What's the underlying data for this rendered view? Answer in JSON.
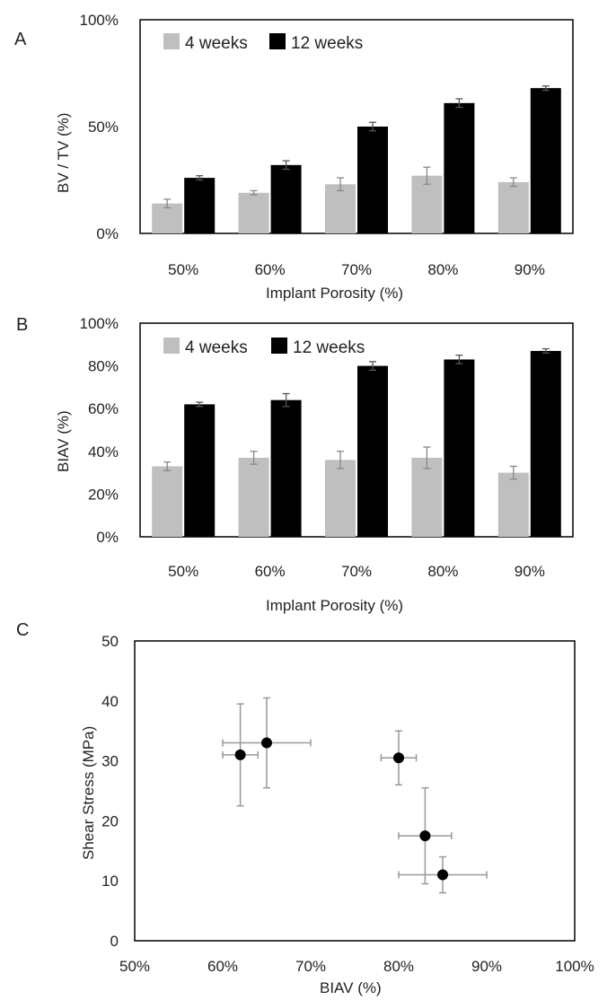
{
  "chart_data": [
    {
      "panel": "A",
      "type": "bar",
      "categories": [
        "50%",
        "60%",
        "70%",
        "80%",
        "90%"
      ],
      "series": [
        {
          "name": "4 weeks",
          "values": [
            14,
            19,
            23,
            27,
            24
          ],
          "errors": [
            2,
            1,
            3,
            4,
            2
          ],
          "color": "#bfbfbf"
        },
        {
          "name": "12 weeks",
          "values": [
            26,
            32,
            50,
            61,
            68
          ],
          "errors": [
            1,
            2,
            2,
            2,
            1
          ],
          "color": "#000000"
        }
      ],
      "xlabel": "Implant Porosity (%)",
      "ylabel": "BV / TV (%)",
      "ylim": [
        0,
        100
      ],
      "yticks": [
        "0%",
        "50%",
        "100%"
      ],
      "legend": "top-left"
    },
    {
      "panel": "B",
      "type": "bar",
      "categories": [
        "50%",
        "60%",
        "70%",
        "80%",
        "90%"
      ],
      "series": [
        {
          "name": "4 weeks",
          "values": [
            33,
            37,
            36,
            37,
            30
          ],
          "errors": [
            2,
            3,
            4,
            5,
            3
          ],
          "color": "#bfbfbf"
        },
        {
          "name": "12 weeks",
          "values": [
            62,
            64,
            80,
            83,
            87
          ],
          "errors": [
            1,
            3,
            2,
            2,
            1
          ],
          "color": "#000000"
        }
      ],
      "xlabel": "Implant Porosity (%)",
      "ylabel": "BIAV (%)",
      "ylim": [
        0,
        100
      ],
      "yticks": [
        "0%",
        "20%",
        "40%",
        "60%",
        "80%",
        "100%"
      ],
      "legend": "top-left"
    },
    {
      "panel": "C",
      "type": "scatter",
      "points": [
        {
          "x": 62,
          "y": 31,
          "xerr": 2,
          "yerr": 8.5
        },
        {
          "x": 65,
          "y": 33,
          "xerr": 5,
          "yerr": 7.5
        },
        {
          "x": 80,
          "y": 30.5,
          "xerr": 2,
          "yerr": 4.5
        },
        {
          "x": 83,
          "y": 17.5,
          "xerr": 3,
          "yerr": 8
        },
        {
          "x": 85,
          "y": 11,
          "xerr": 5,
          "yerr": 3
        }
      ],
      "xlabel": "BIAV (%)",
      "ylabel": "Shear Stress (MPa)",
      "xlim": [
        50,
        100
      ],
      "ylim": [
        0,
        50
      ],
      "xticks": [
        "50%",
        "60%",
        "70%",
        "80%",
        "90%",
        "100%"
      ],
      "yticks": [
        "0",
        "10",
        "20",
        "30",
        "40",
        "50"
      ]
    }
  ]
}
